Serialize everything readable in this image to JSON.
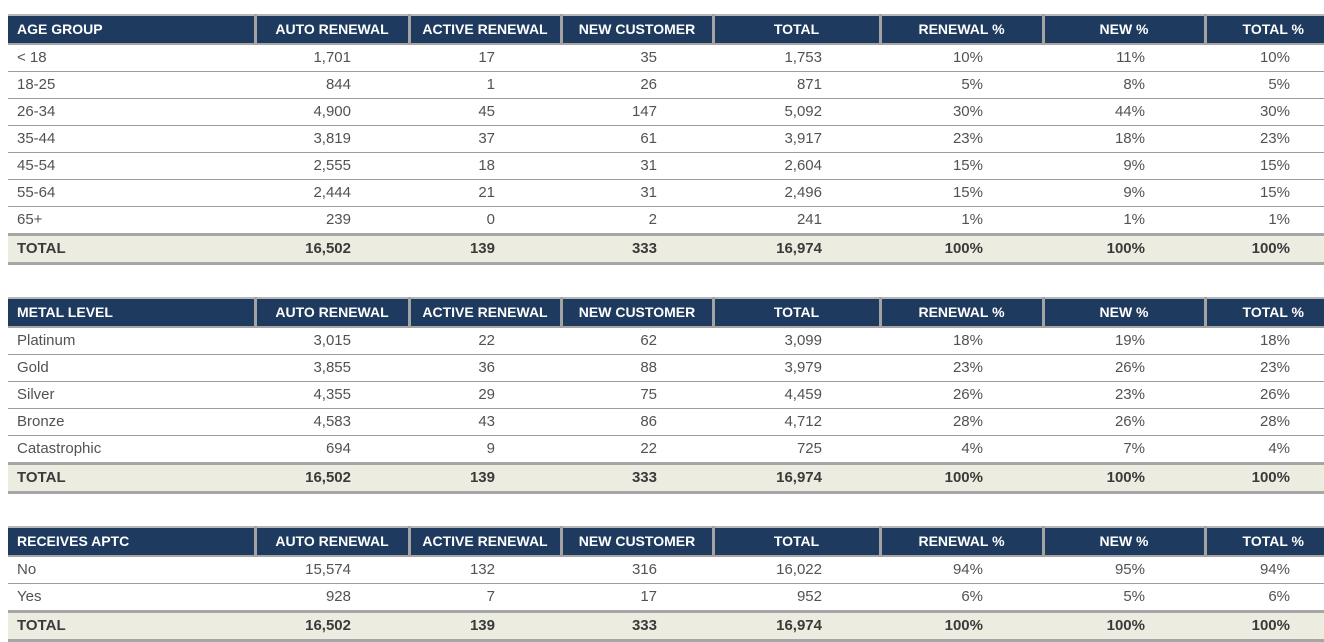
{
  "page": {
    "background": "#ffffff"
  },
  "colors": {
    "header_bg": "#1e3a5e",
    "header_text": "#ffffff",
    "total_row_bg": "#edece1",
    "row_border": "#9c9c9c",
    "total_border": "#a6a6a6",
    "body_text": "#525252"
  },
  "chart_data": [
    {
      "type": "table",
      "title": "AGE GROUP",
      "columns": [
        "AGE GROUP",
        "AUTO RENEWAL",
        "ACTIVE RENEWAL",
        "NEW CUSTOMER",
        "TOTAL",
        "RENEWAL %",
        "NEW %",
        "TOTAL %"
      ],
      "rows": [
        [
          "< 18",
          "1,701",
          "17",
          "35",
          "1,753",
          "10%",
          "11%",
          "10%"
        ],
        [
          "18-25",
          "844",
          "1",
          "26",
          "871",
          "5%",
          "8%",
          "5%"
        ],
        [
          "26-34",
          "4,900",
          "45",
          "147",
          "5,092",
          "30%",
          "44%",
          "30%"
        ],
        [
          "35-44",
          "3,819",
          "37",
          "61",
          "3,917",
          "23%",
          "18%",
          "23%"
        ],
        [
          "45-54",
          "2,555",
          "18",
          "31",
          "2,604",
          "15%",
          "9%",
          "15%"
        ],
        [
          "55-64",
          "2,444",
          "21",
          "31",
          "2,496",
          "15%",
          "9%",
          "15%"
        ],
        [
          "65+",
          "239",
          "0",
          "2",
          "241",
          "1%",
          "1%",
          "1%"
        ]
      ],
      "total_row": [
        "TOTAL",
        "16,502",
        "139",
        "333",
        "16,974",
        "100%",
        "100%",
        "100%"
      ]
    },
    {
      "type": "table",
      "title": "METAL LEVEL",
      "columns": [
        "METAL LEVEL",
        "AUTO RENEWAL",
        "ACTIVE RENEWAL",
        "NEW CUSTOMER",
        "TOTAL",
        "RENEWAL %",
        "NEW %",
        "TOTAL %"
      ],
      "rows": [
        [
          "Platinum",
          "3,015",
          "22",
          "62",
          "3,099",
          "18%",
          "19%",
          "18%"
        ],
        [
          "Gold",
          "3,855",
          "36",
          "88",
          "3,979",
          "23%",
          "26%",
          "23%"
        ],
        [
          "Silver",
          "4,355",
          "29",
          "75",
          "4,459",
          "26%",
          "23%",
          "26%"
        ],
        [
          "Bronze",
          "4,583",
          "43",
          "86",
          "4,712",
          "28%",
          "26%",
          "28%"
        ],
        [
          "Catastrophic",
          "694",
          "9",
          "22",
          "725",
          "4%",
          "7%",
          "4%"
        ]
      ],
      "total_row": [
        "TOTAL",
        "16,502",
        "139",
        "333",
        "16,974",
        "100%",
        "100%",
        "100%"
      ]
    },
    {
      "type": "table",
      "title": "RECEIVES APTC",
      "columns": [
        "RECEIVES APTC",
        "AUTO RENEWAL",
        "ACTIVE RENEWAL",
        "NEW CUSTOMER",
        "TOTAL",
        "RENEWAL %",
        "NEW %",
        "TOTAL %"
      ],
      "rows": [
        [
          "No",
          "15,574",
          "132",
          "316",
          "16,022",
          "94%",
          "95%",
          "94%"
        ],
        [
          "Yes",
          "928",
          "7",
          "17",
          "952",
          "6%",
          "5%",
          "6%"
        ]
      ],
      "total_row": [
        "TOTAL",
        "16,502",
        "139",
        "333",
        "16,974",
        "100%",
        "100%",
        "100%"
      ]
    }
  ]
}
